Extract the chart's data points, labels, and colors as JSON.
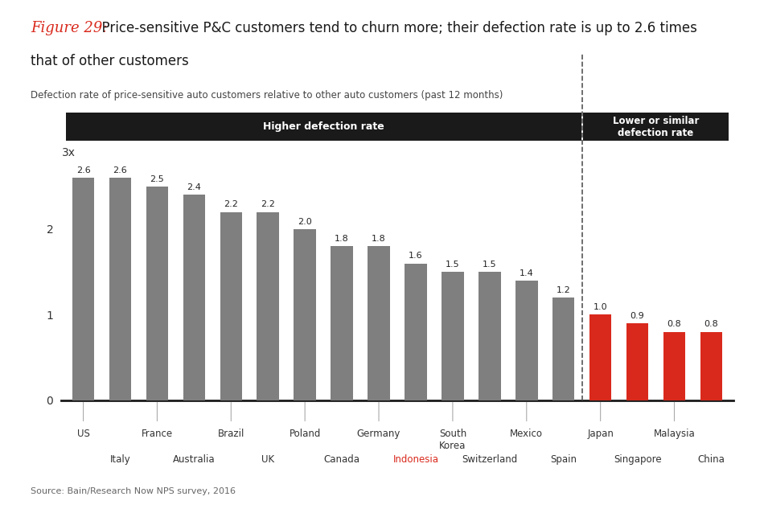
{
  "categories_row1": [
    "US",
    "",
    "France",
    "",
    "Brazil",
    "",
    "Poland",
    "",
    "Germany",
    "",
    "South\nKorea",
    "",
    "Mexico",
    "",
    "Japan",
    "",
    "Malaysia",
    ""
  ],
  "categories_row2": [
    "",
    "Italy",
    "",
    "Australia",
    "",
    "UK",
    "",
    "Canada",
    "",
    "Indonesia",
    "",
    "Switzerland",
    "",
    "Spain",
    "",
    "Singapore",
    "",
    "China"
  ],
  "categories_all": [
    "US",
    "Italy",
    "France",
    "Australia",
    "Brazil",
    "UK",
    "Poland",
    "Canada",
    "Germany",
    "Indonesia",
    "South\nKorea",
    "Switzerland",
    "Mexico",
    "Spain",
    "Japan",
    "Singapore",
    "Malaysia",
    "China"
  ],
  "values": [
    2.6,
    2.6,
    2.5,
    2.4,
    2.2,
    2.2,
    2.0,
    1.8,
    1.8,
    1.6,
    1.5,
    1.5,
    1.4,
    1.2,
    1.0,
    0.9,
    0.8,
    0.8
  ],
  "bar_colors": [
    "#7f7f7f",
    "#7f7f7f",
    "#7f7f7f",
    "#7f7f7f",
    "#7f7f7f",
    "#7f7f7f",
    "#7f7f7f",
    "#7f7f7f",
    "#7f7f7f",
    "#7f7f7f",
    "#7f7f7f",
    "#7f7f7f",
    "#7f7f7f",
    "#7f7f7f",
    "#d9291c",
    "#d9291c",
    "#d9291c",
    "#d9291c"
  ],
  "indonesia_index": 9,
  "split_index": 14,
  "figure_title_italic": "Figure 29:",
  "figure_title_rest": "  Price-sensitive P&C customers tend to churn more; their defection rate is up to 2.6 times",
  "figure_title_rest2": "that of other customers",
  "subtitle": "Defection rate of price-sensitive auto customers relative to other auto customers (past 12 months)",
  "source": "Source: Bain/Research Now NPS survey, 2016",
  "header_left": "Higher defection rate",
  "header_right": "Lower or similar\ndefection rate",
  "ylim": [
    0,
    3.0
  ],
  "yticks": [
    0,
    1,
    2
  ],
  "ytick_labels": [
    "0",
    "1",
    "2"
  ],
  "y_label_3x": "3x",
  "title_color_italic": "#d9291c",
  "title_color_rest": "#1a1a1a",
  "subtitle_color": "#444444",
  "source_color": "#666666",
  "bar_label_color": "#222222",
  "indonesia_label_color": "#d9291c",
  "header_bg_color": "#1a1a1a",
  "header_text_color": "#ffffff",
  "axis_color": "#1a1a1a",
  "tick_label_color": "#333333",
  "background_color": "#ffffff",
  "dashed_line_color": "#555555"
}
